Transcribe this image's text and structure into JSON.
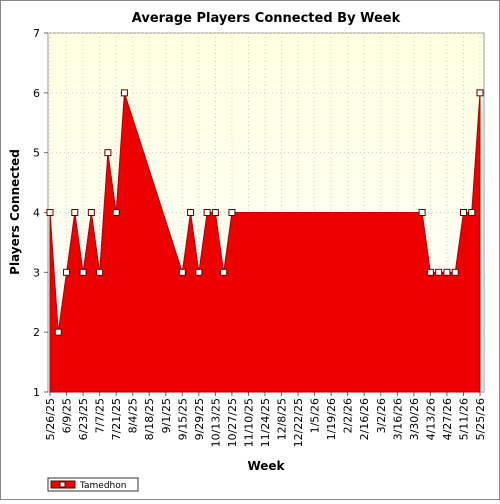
{
  "chart_data": {
    "type": "area",
    "title": "Average Players Connected By Week",
    "x_label": "Week",
    "y_label": "Players Connected",
    "x": [
      "5/26/25",
      "6/2/25",
      "6/9/25",
      "6/16/25",
      "6/23/25",
      "6/30/25",
      "7/7/25",
      "7/14/25",
      "7/21/25",
      "7/28/25",
      "9/15/25",
      "9/22/25",
      "9/29/25",
      "10/6/25",
      "10/13/25",
      "10/20/25",
      "10/27/25",
      "4/6/26",
      "4/13/26",
      "4/20/26",
      "4/27/26",
      "5/4/26",
      "5/11/26",
      "5/18/26",
      "5/25/26"
    ],
    "series": [
      {
        "name": "Tamedhon",
        "color": "#ee0000",
        "values": [
          4,
          2,
          3,
          4,
          3,
          4,
          3,
          5,
          4,
          6,
          3,
          4,
          3,
          4,
          4,
          3,
          4,
          4,
          3,
          3,
          3,
          3,
          4,
          4,
          6
        ]
      }
    ],
    "xlim": [
      "5/26/25",
      "5/25/26"
    ],
    "xticks": [
      "5/26/25",
      "6/9/25",
      "6/23/25",
      "7/7/25",
      "7/21/25",
      "8/4/25",
      "8/18/25",
      "9/1/25",
      "9/15/25",
      "9/29/25",
      "10/13/25",
      "10/27/25",
      "11/10/25",
      "11/24/25",
      "12/8/25",
      "12/22/25",
      "1/5/26",
      "1/19/26",
      "2/2/26",
      "2/16/26",
      "3/2/26",
      "3/16/26",
      "3/30/26",
      "4/13/26",
      "4/27/26",
      "5/11/26",
      "5/25/26"
    ],
    "ylim": [
      1,
      7
    ],
    "yticks": [
      1,
      2,
      3,
      4,
      5,
      6,
      7
    ],
    "grid": true,
    "legend": "bottom-left"
  }
}
